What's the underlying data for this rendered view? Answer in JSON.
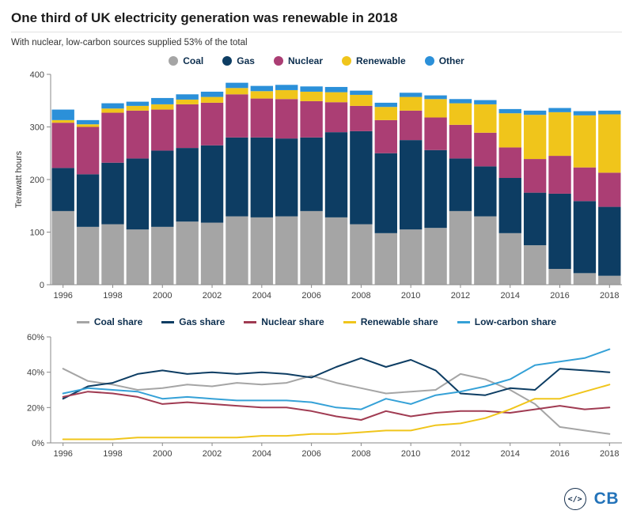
{
  "header": {
    "title": "One third of UK electricity generation was renewable in 2018",
    "subtitle": "With nuclear, low-carbon sources supplied 53% of the total"
  },
  "colors": {
    "coal": "#a5a5a5",
    "gas": "#0d3d63",
    "nuclear": "#ab3e74",
    "renewable": "#f0c51b",
    "other": "#2b90d9",
    "nuclear_share_line": "#a03b52",
    "low_carbon_line": "#35a1d7",
    "legend_text": "#0c2e4e",
    "logo_blue": "#2373b9"
  },
  "chart_data": [
    {
      "type": "bar",
      "stacked": true,
      "ylabel": "Terawatt hours",
      "ylim": [
        0,
        400
      ],
      "yticks": [
        0,
        100,
        200,
        300,
        400
      ],
      "grid": false,
      "legend_position": "top-center",
      "categories": [
        1996,
        1997,
        1998,
        1999,
        2000,
        2001,
        2002,
        2003,
        2004,
        2005,
        2006,
        2007,
        2008,
        2009,
        2010,
        2011,
        2012,
        2013,
        2014,
        2015,
        2016,
        2017,
        2018
      ],
      "xticks": [
        1996,
        1998,
        2000,
        2002,
        2004,
        2006,
        2008,
        2010,
        2012,
        2014,
        2016,
        2018
      ],
      "series": [
        {
          "name": "Coal",
          "color": "#a5a5a5",
          "values": [
            140,
            110,
            115,
            105,
            110,
            120,
            118,
            130,
            128,
            130,
            140,
            128,
            115,
            98,
            105,
            108,
            140,
            130,
            98,
            75,
            30,
            22,
            17
          ]
        },
        {
          "name": "Gas",
          "color": "#0d3d63",
          "values": [
            82,
            100,
            117,
            135,
            145,
            140,
            147,
            150,
            152,
            148,
            140,
            162,
            177,
            152,
            170,
            148,
            100,
            95,
            105,
            100,
            143,
            137,
            131
          ]
        },
        {
          "name": "Nuclear",
          "color": "#ab3e74",
          "values": [
            86,
            90,
            95,
            91,
            78,
            83,
            81,
            82,
            74,
            75,
            69,
            57,
            48,
            63,
            56,
            62,
            64,
            64,
            58,
            64,
            72,
            64,
            65
          ]
        },
        {
          "name": "Renewable",
          "color": "#f0c51b",
          "values": [
            5,
            5,
            8,
            9,
            10,
            9,
            11,
            12,
            14,
            17,
            18,
            19,
            21,
            25,
            26,
            35,
            41,
            54,
            65,
            84,
            83,
            99,
            111
          ]
        },
        {
          "name": "Other",
          "color": "#2b90d9",
          "values": [
            20,
            8,
            10,
            8,
            12,
            10,
            10,
            10,
            10,
            10,
            10,
            10,
            8,
            8,
            8,
            7,
            8,
            8,
            8,
            8,
            8,
            8,
            7
          ]
        }
      ]
    },
    {
      "type": "line",
      "ylim": [
        0,
        60
      ],
      "yticks": [
        0,
        20,
        40,
        60
      ],
      "ytick_labels": [
        "0%",
        "20%",
        "40%",
        "60%"
      ],
      "grid": false,
      "legend_position": "top-center",
      "categories": [
        1996,
        1997,
        1998,
        1999,
        2000,
        2001,
        2002,
        2003,
        2004,
        2005,
        2006,
        2007,
        2008,
        2009,
        2010,
        2011,
        2012,
        2013,
        2014,
        2015,
        2016,
        2017,
        2018
      ],
      "xticks": [
        1996,
        1998,
        2000,
        2002,
        2004,
        2006,
        2008,
        2010,
        2012,
        2014,
        2016,
        2018
      ],
      "series": [
        {
          "name": "Coal share",
          "color": "#a5a5a5",
          "values": [
            42,
            35,
            33,
            30,
            31,
            33,
            32,
            34,
            33,
            34,
            38,
            34,
            31,
            28,
            29,
            30,
            39,
            36,
            30,
            22,
            9,
            7,
            5
          ]
        },
        {
          "name": "Gas share",
          "color": "#0d3d63",
          "values": [
            25,
            32,
            34,
            39,
            41,
            39,
            40,
            39,
            40,
            39,
            37,
            43,
            48,
            43,
            47,
            41,
            28,
            27,
            31,
            30,
            42,
            41,
            40
          ]
        },
        {
          "name": "Nuclear share",
          "color": "#a03b52",
          "values": [
            26,
            29,
            28,
            26,
            22,
            23,
            22,
            21,
            20,
            20,
            18,
            15,
            13,
            18,
            15,
            17,
            18,
            18,
            17,
            19,
            21,
            19,
            20
          ]
        },
        {
          "name": "Renewable share",
          "color": "#f0c51b",
          "values": [
            2,
            2,
            2,
            3,
            3,
            3,
            3,
            3,
            4,
            4,
            5,
            5,
            6,
            7,
            7,
            10,
            11,
            14,
            19,
            25,
            25,
            29,
            33
          ]
        },
        {
          "name": "Low-carbon share",
          "color": "#35a1d7",
          "values": [
            28,
            31,
            30,
            29,
            25,
            26,
            25,
            24,
            24,
            24,
            23,
            20,
            19,
            25,
            22,
            27,
            29,
            32,
            36,
            44,
            46,
            48,
            53
          ]
        }
      ]
    }
  ],
  "footer": {
    "embed_icon": "</>",
    "logo": "CB"
  }
}
